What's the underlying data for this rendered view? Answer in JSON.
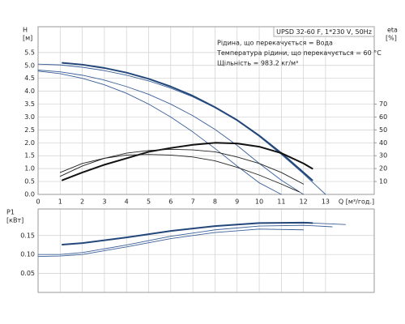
{
  "chart_data": [
    {
      "type": "line",
      "title": "UPSD 32-60 F, 1*230 V, 50Hz",
      "annotations": [
        "Рідина, що перекачується = Вода",
        "Температура рідини, що перекачується = 60 °C",
        "Щільність = 983.2 кг/м³"
      ],
      "ylabel": "H",
      "yunit": "[м]",
      "y2label": "eta",
      "y2unit": "[%]",
      "xlabel": "Q [м³/год.]",
      "xlim": [
        0,
        15.2
      ],
      "xticks": [
        0,
        1,
        2,
        3,
        4,
        5,
        6,
        7,
        8,
        9,
        10,
        11,
        12,
        13
      ],
      "ylim": [
        0,
        6.5
      ],
      "yticks": [
        {
          "value": 0,
          "label": "0.0"
        },
        0.5,
        {
          "value": 1,
          "label": "1.0"
        },
        1.5,
        {
          "value": 2,
          "label": "2.0"
        },
        2.5,
        {
          "value": 3,
          "label": "3.0"
        },
        3.5,
        {
          "value": 4,
          "label": "4.0"
        },
        4.5,
        {
          "value": 5,
          "label": "5.0"
        },
        5.5
      ],
      "y2lim": [
        0,
        130
      ],
      "y2ticks": [
        10,
        20,
        30,
        40,
        50,
        60,
        70
      ],
      "grid": true,
      "series": [
        {
          "color": "#3a5f98",
          "thick": false,
          "x": [
            0,
            1,
            2,
            3,
            4,
            5,
            6,
            7,
            8,
            9,
            10,
            11,
            12,
            13
          ],
          "values": [
            5.05,
            5.02,
            4.93,
            4.8,
            4.62,
            4.4,
            4.12,
            3.78,
            3.36,
            2.86,
            2.25,
            1.55,
            0.8,
            0
          ]
        },
        {
          "color": "#3a5f98",
          "thick": false,
          "x": [
            0,
            1,
            2,
            3,
            4,
            5,
            6,
            7,
            8,
            9,
            10,
            11,
            12
          ],
          "values": [
            4.82,
            4.75,
            4.62,
            4.43,
            4.18,
            3.88,
            3.5,
            3.05,
            2.52,
            1.9,
            1.2,
            0.55,
            0
          ]
        },
        {
          "color": "#3a5f98",
          "thick": false,
          "x": [
            0,
            1,
            2,
            3,
            4,
            5,
            6,
            7,
            8,
            9,
            10,
            11
          ],
          "values": [
            4.78,
            4.68,
            4.5,
            4.25,
            3.92,
            3.5,
            3.0,
            2.42,
            1.78,
            1.1,
            0.45,
            0
          ]
        },
        {
          "color": "#23477a",
          "thick": true,
          "x": [
            1.1,
            2,
            3,
            4,
            5,
            6,
            7,
            8,
            9,
            10,
            11,
            12,
            12.4
          ],
          "values": [
            5.1,
            5.03,
            4.9,
            4.72,
            4.48,
            4.18,
            3.82,
            3.38,
            2.88,
            2.28,
            1.6,
            0.85,
            0.55
          ]
        },
        {
          "color": "#111111",
          "thick": true,
          "axis": "y2",
          "x": [
            1.1,
            2,
            3,
            4,
            5,
            6,
            7,
            8,
            9,
            10,
            11,
            12,
            12.4
          ],
          "values": [
            11,
            17,
            23,
            28,
            33,
            36,
            38.5,
            40,
            39.5,
            37,
            32,
            24,
            20
          ]
        },
        {
          "color": "#222222",
          "thick": false,
          "axis": "y2",
          "x": [
            1,
            2,
            3,
            4,
            5,
            6,
            7,
            8,
            9,
            10,
            11,
            12
          ],
          "values": [
            14,
            22,
            28,
            32,
            34,
            35,
            34.5,
            33,
            29,
            24,
            17,
            8
          ]
        },
        {
          "color": "#222222",
          "thick": false,
          "axis": "y2",
          "x": [
            1,
            2,
            3,
            4,
            5,
            6,
            7,
            8,
            9,
            10,
            11,
            11.8
          ],
          "values": [
            17,
            24,
            28,
            30.5,
            31,
            30.5,
            29,
            26,
            21,
            15,
            8,
            2
          ]
        }
      ]
    },
    {
      "type": "line",
      "ylabel": "P1",
      "yunit": "[кВт]",
      "xlim": [
        0,
        15.2
      ],
      "xticks": [
        0,
        1,
        2,
        3,
        4,
        5,
        6,
        7,
        8,
        9,
        10,
        11,
        12,
        13
      ],
      "ylim": [
        0,
        0.22
      ],
      "yticks": [
        0.05,
        {
          "value": 0.1,
          "label": "0.10"
        },
        0.15
      ],
      "grid": true,
      "series": [
        {
          "color": "#3a5f98",
          "thick": false,
          "x": [
            1.1,
            2,
            4,
            6,
            8,
            10,
            12,
            13.9
          ],
          "values": [
            0.126,
            0.13,
            0.145,
            0.162,
            0.175,
            0.183,
            0.184,
            0.179
          ]
        },
        {
          "color": "#3a5f98",
          "thick": false,
          "x": [
            0,
            1,
            2,
            4,
            6,
            8,
            10,
            12,
            13.3
          ],
          "values": [
            0.1,
            0.1,
            0.105,
            0.125,
            0.148,
            0.165,
            0.175,
            0.177,
            0.173
          ]
        },
        {
          "color": "#3a5f98",
          "thick": false,
          "x": [
            0,
            1,
            2,
            4,
            6,
            8,
            10,
            12
          ],
          "values": [
            0.095,
            0.096,
            0.1,
            0.12,
            0.142,
            0.158,
            0.167,
            0.165
          ]
        },
        {
          "color": "#23477a",
          "thick": true,
          "x": [
            1.1,
            2,
            4,
            6,
            8,
            10,
            12,
            12.4
          ],
          "values": [
            0.126,
            0.13,
            0.145,
            0.162,
            0.175,
            0.183,
            0.184,
            0.183
          ]
        }
      ]
    }
  ]
}
